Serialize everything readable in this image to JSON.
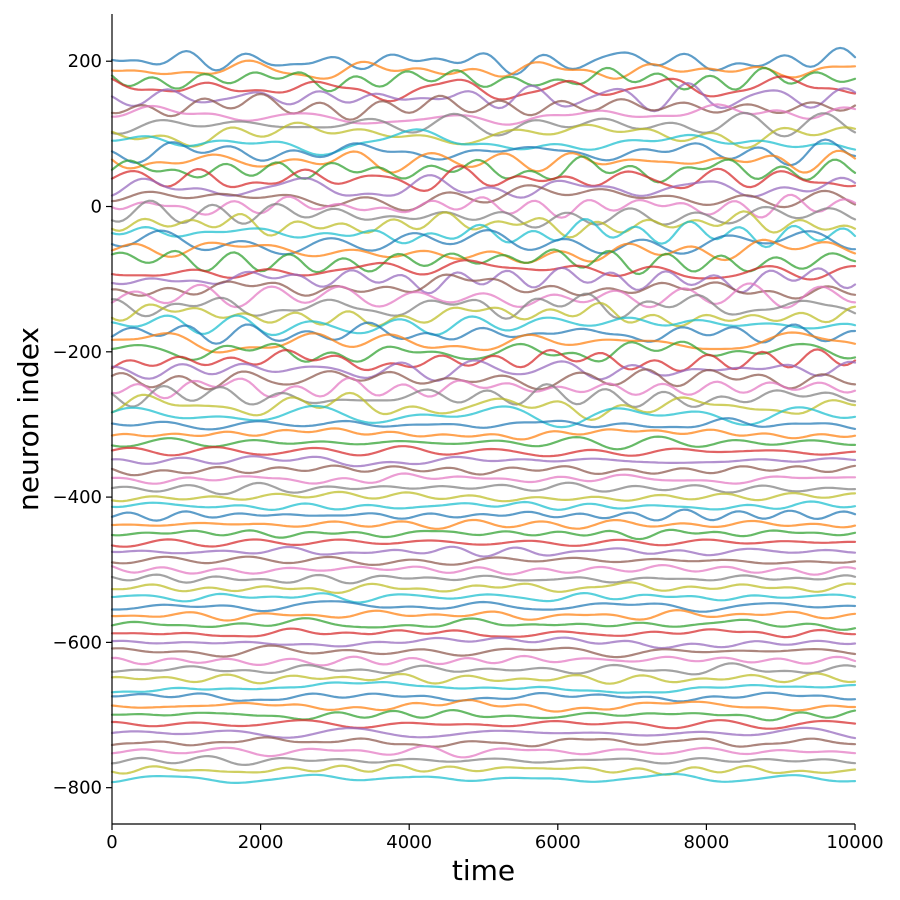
{
  "chart_data": {
    "type": "line",
    "title": "",
    "xlabel": "time",
    "ylabel": "neuron index",
    "xlim": [
      0,
      10000
    ],
    "ylim": [
      -850,
      265
    ],
    "x_ticks": [
      0,
      2000,
      4000,
      6000,
      8000,
      10000
    ],
    "x_tick_labels": [
      "0",
      "2000",
      "4000",
      "6000",
      "8000",
      "10000"
    ],
    "y_ticks": [
      200,
      0,
      -200,
      -400,
      -600,
      -800
    ],
    "y_tick_labels": [
      "200",
      "0",
      "−200",
      "−400",
      "−600",
      "−800"
    ],
    "grid": false,
    "legend": "none",
    "spines": "left and bottom only",
    "n_series": 80,
    "series_offset_start": 200,
    "series_offset_step": -12.5,
    "series_offset_end": -787.5,
    "color_cycle": [
      "#1f77b4",
      "#ff7f0e",
      "#2ca02c",
      "#d62728",
      "#9467bd",
      "#8c564b",
      "#e377c2",
      "#7f7f7f",
      "#bcbd22",
      "#17becf"
    ],
    "approx_fluctuation_amplitude": {
      "upper_half": 14,
      "lower_half": 6
    }
  }
}
